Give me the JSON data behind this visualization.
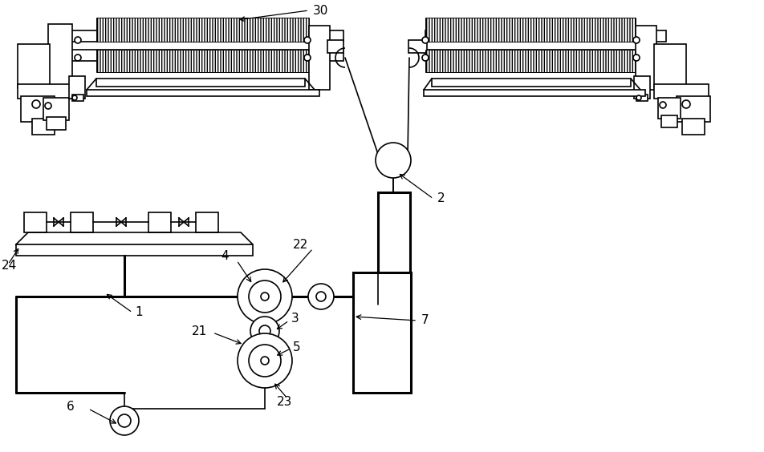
{
  "bg_color": "#ffffff",
  "line_color": "#000000",
  "lw": 1.2,
  "tlw": 2.2,
  "label_fs": 11,
  "fig_w": 9.52,
  "fig_h": 5.64,
  "dpi": 100
}
